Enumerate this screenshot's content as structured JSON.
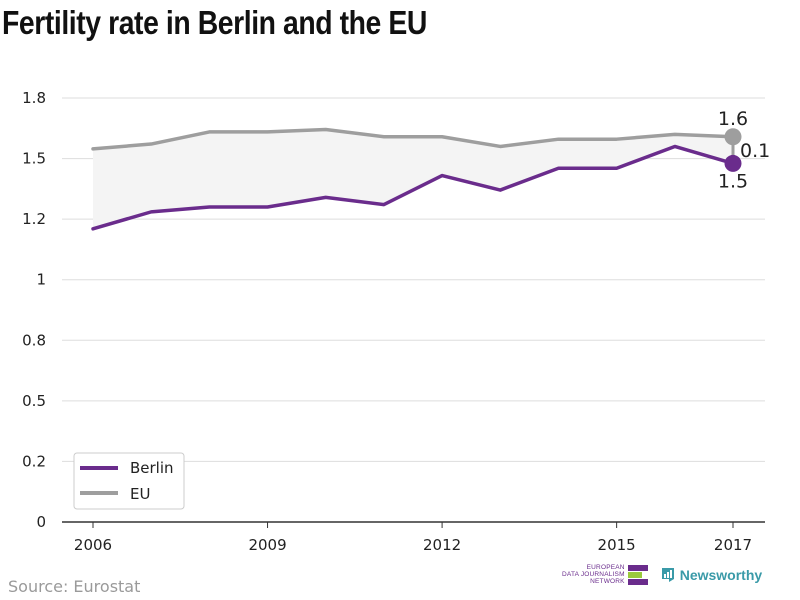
{
  "colors": {
    "berlin": "#6a2c8c",
    "eu": "#9e9e9e",
    "grid": "#dddddd",
    "band": "#f4f4f4"
  },
  "chart_data": {
    "type": "line",
    "title": "Fertility rate in Berlin and the EU",
    "xlabel": "",
    "ylabel": "",
    "x": [
      2006,
      2007,
      2008,
      2009,
      2010,
      2011,
      2012,
      2013,
      2014,
      2015,
      2016,
      2017
    ],
    "series": [
      {
        "name": "Berlin",
        "color": "#6a2c8c",
        "values": [
          1.21,
          1.28,
          1.3,
          1.3,
          1.34,
          1.31,
          1.43,
          1.37,
          1.46,
          1.46,
          1.55,
          1.48
        ]
      },
      {
        "name": "EU",
        "color": "#9e9e9e",
        "values": [
          1.54,
          1.56,
          1.61,
          1.61,
          1.62,
          1.59,
          1.59,
          1.55,
          1.58,
          1.58,
          1.6,
          1.59
        ]
      }
    ],
    "xticks": [
      2006,
      2009,
      2012,
      2015,
      2017
    ],
    "yticks": [
      {
        "value": 0,
        "label": "0"
      },
      {
        "value": 0.25,
        "label": "0.2"
      },
      {
        "value": 0.5,
        "label": "0.5"
      },
      {
        "value": 0.75,
        "label": "0.8"
      },
      {
        "value": 1.0,
        "label": "1"
      },
      {
        "value": 1.25,
        "label": "1.2"
      },
      {
        "value": 1.5,
        "label": "1.5"
      },
      {
        "value": 1.75,
        "label": "1.8"
      }
    ],
    "xlim": [
      2006,
      2017
    ],
    "ylim": [
      0,
      1.75
    ],
    "grid": true,
    "legend_position": "bottom-left",
    "end_labels": {
      "eu": "1.6",
      "berlin": "1.5",
      "difference": "0.1"
    }
  },
  "source": "Source: Eurostat",
  "logos": {
    "edjn": [
      "EUROPEAN",
      "DATA JOURNALISM",
      "NETWORK"
    ],
    "newsworthy": "Newsworthy"
  }
}
